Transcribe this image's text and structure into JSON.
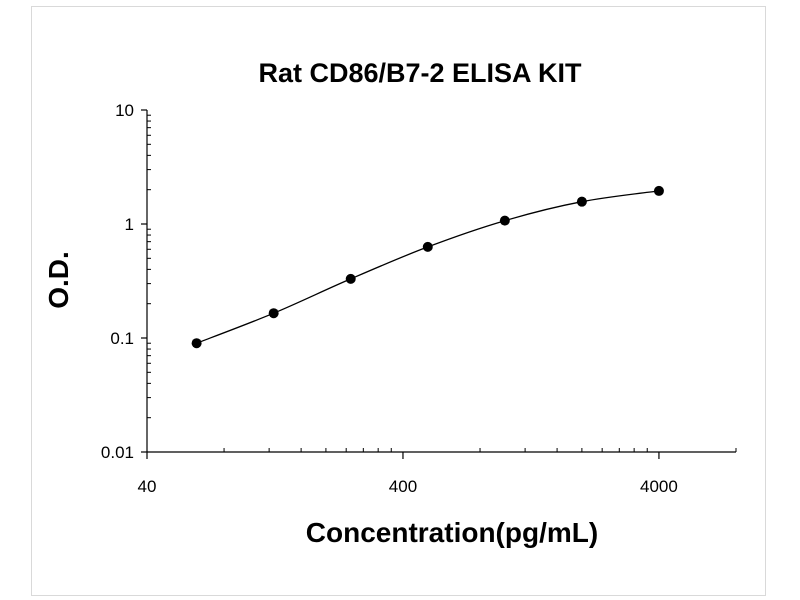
{
  "chart_data": {
    "type": "scatter",
    "title": "Rat CD86/B7-2 ELISA KIT",
    "xlabel": "Concentration(pg/mL)",
    "ylabel": "O.D.",
    "x_scale": "log",
    "y_scale": "log",
    "xlim": [
      40,
      8000
    ],
    "ylim": [
      0.01,
      10
    ],
    "x_ticks": [
      "40",
      "400",
      "4000"
    ],
    "y_ticks": [
      "10",
      "1",
      "0.1",
      "0.01"
    ],
    "grid": false,
    "legend": "none",
    "fit_curve": true,
    "series": [
      {
        "x": [
          62.5,
          125,
          250,
          500,
          1000,
          2000,
          4000
        ],
        "y": [
          0.09,
          0.165,
          0.33,
          0.63,
          1.07,
          1.57,
          1.95
        ]
      }
    ],
    "colors": {
      "line": "#000000",
      "marker": "#000000"
    }
  }
}
